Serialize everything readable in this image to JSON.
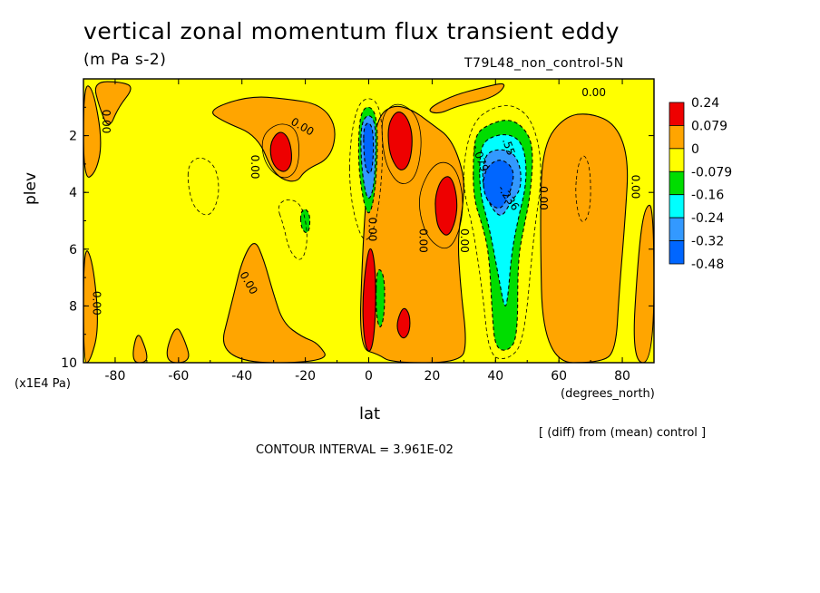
{
  "header": {
    "title": "vertical zonal momentum flux transient eddy",
    "units": "(m Pa s-2)",
    "run_label": "T79L48_non_control-5N"
  },
  "footer": {
    "contour_interval": "CONTOUR INTERVAL = 3.961E-02",
    "diff_note": "[ (diff) from (mean) control ]"
  },
  "chart_data": {
    "type": "heatmap",
    "title": "vertical zonal momentum flux transient eddy",
    "subtitle": "(m Pa s-2)",
    "xlabel": "lat",
    "x_units": "(degrees_north)",
    "ylabel": "plev",
    "y_units": "(x1E4 Pa)",
    "xlim": [
      -90,
      90
    ],
    "ylim": [
      10,
      0
    ],
    "y_axis_inverted": true,
    "x_ticks": [
      -80,
      -60,
      -40,
      -20,
      0,
      20,
      40,
      60,
      80
    ],
    "x_tick_labels": [
      "-80",
      "-60",
      "-40",
      "-20",
      "0",
      "20",
      "40",
      "60",
      "80"
    ],
    "y_ticks": [
      2,
      4,
      6,
      8,
      10
    ],
    "y_tick_labels": [
      "2",
      "4",
      "6",
      "8",
      "10"
    ],
    "colorbar": {
      "labels": [
        "0.24",
        "0.079",
        "0",
        "-0.079",
        "-0.16",
        "-0.24",
        "-0.32",
        "-0.48"
      ],
      "colors": [
        "#ee0000",
        "#ffa500",
        "#ffff00",
        "#00dd00",
        "#00ffff",
        "#3399ff",
        "#0066ff"
      ]
    },
    "contour_labels": [
      {
        "text": "0.00",
        "lon": -83,
        "lev": 1.5,
        "angle": 90
      },
      {
        "text": "0.00",
        "lon": -21,
        "lev": 1.7,
        "angle": 30
      },
      {
        "text": "0.00",
        "lon": -36,
        "lev": 3.1,
        "angle": 90
      },
      {
        "text": "0.00",
        "lon": 71,
        "lev": 0.5,
        "angle": 0
      },
      {
        "text": "0.00",
        "lon": -86,
        "lev": 7.9,
        "angle": 90
      },
      {
        "text": "0.00",
        "lon": -38,
        "lev": 7.2,
        "angle": 60
      },
      {
        "text": "0.00",
        "lon": 1,
        "lev": 5.3,
        "angle": 90
      },
      {
        "text": "0.00",
        "lon": 17,
        "lev": 5.7,
        "angle": 90
      },
      {
        "text": "0.00",
        "lon": 30,
        "lev": 5.7,
        "angle": 90
      },
      {
        "text": "0.00",
        "lon": 55,
        "lev": 4.2,
        "angle": 90
      },
      {
        "text": "0.00",
        "lon": 84,
        "lev": 3.8,
        "angle": 90
      },
      {
        "text": "-.079",
        "lon": 35,
        "lev": 2.8,
        "angle": 70
      },
      {
        "text": "-.236",
        "lon": 44,
        "lev": 4.2,
        "angle": 55
      },
      {
        "text": ".55",
        "lon": 44,
        "lev": 2.4,
        "angle": 70
      }
    ]
  }
}
